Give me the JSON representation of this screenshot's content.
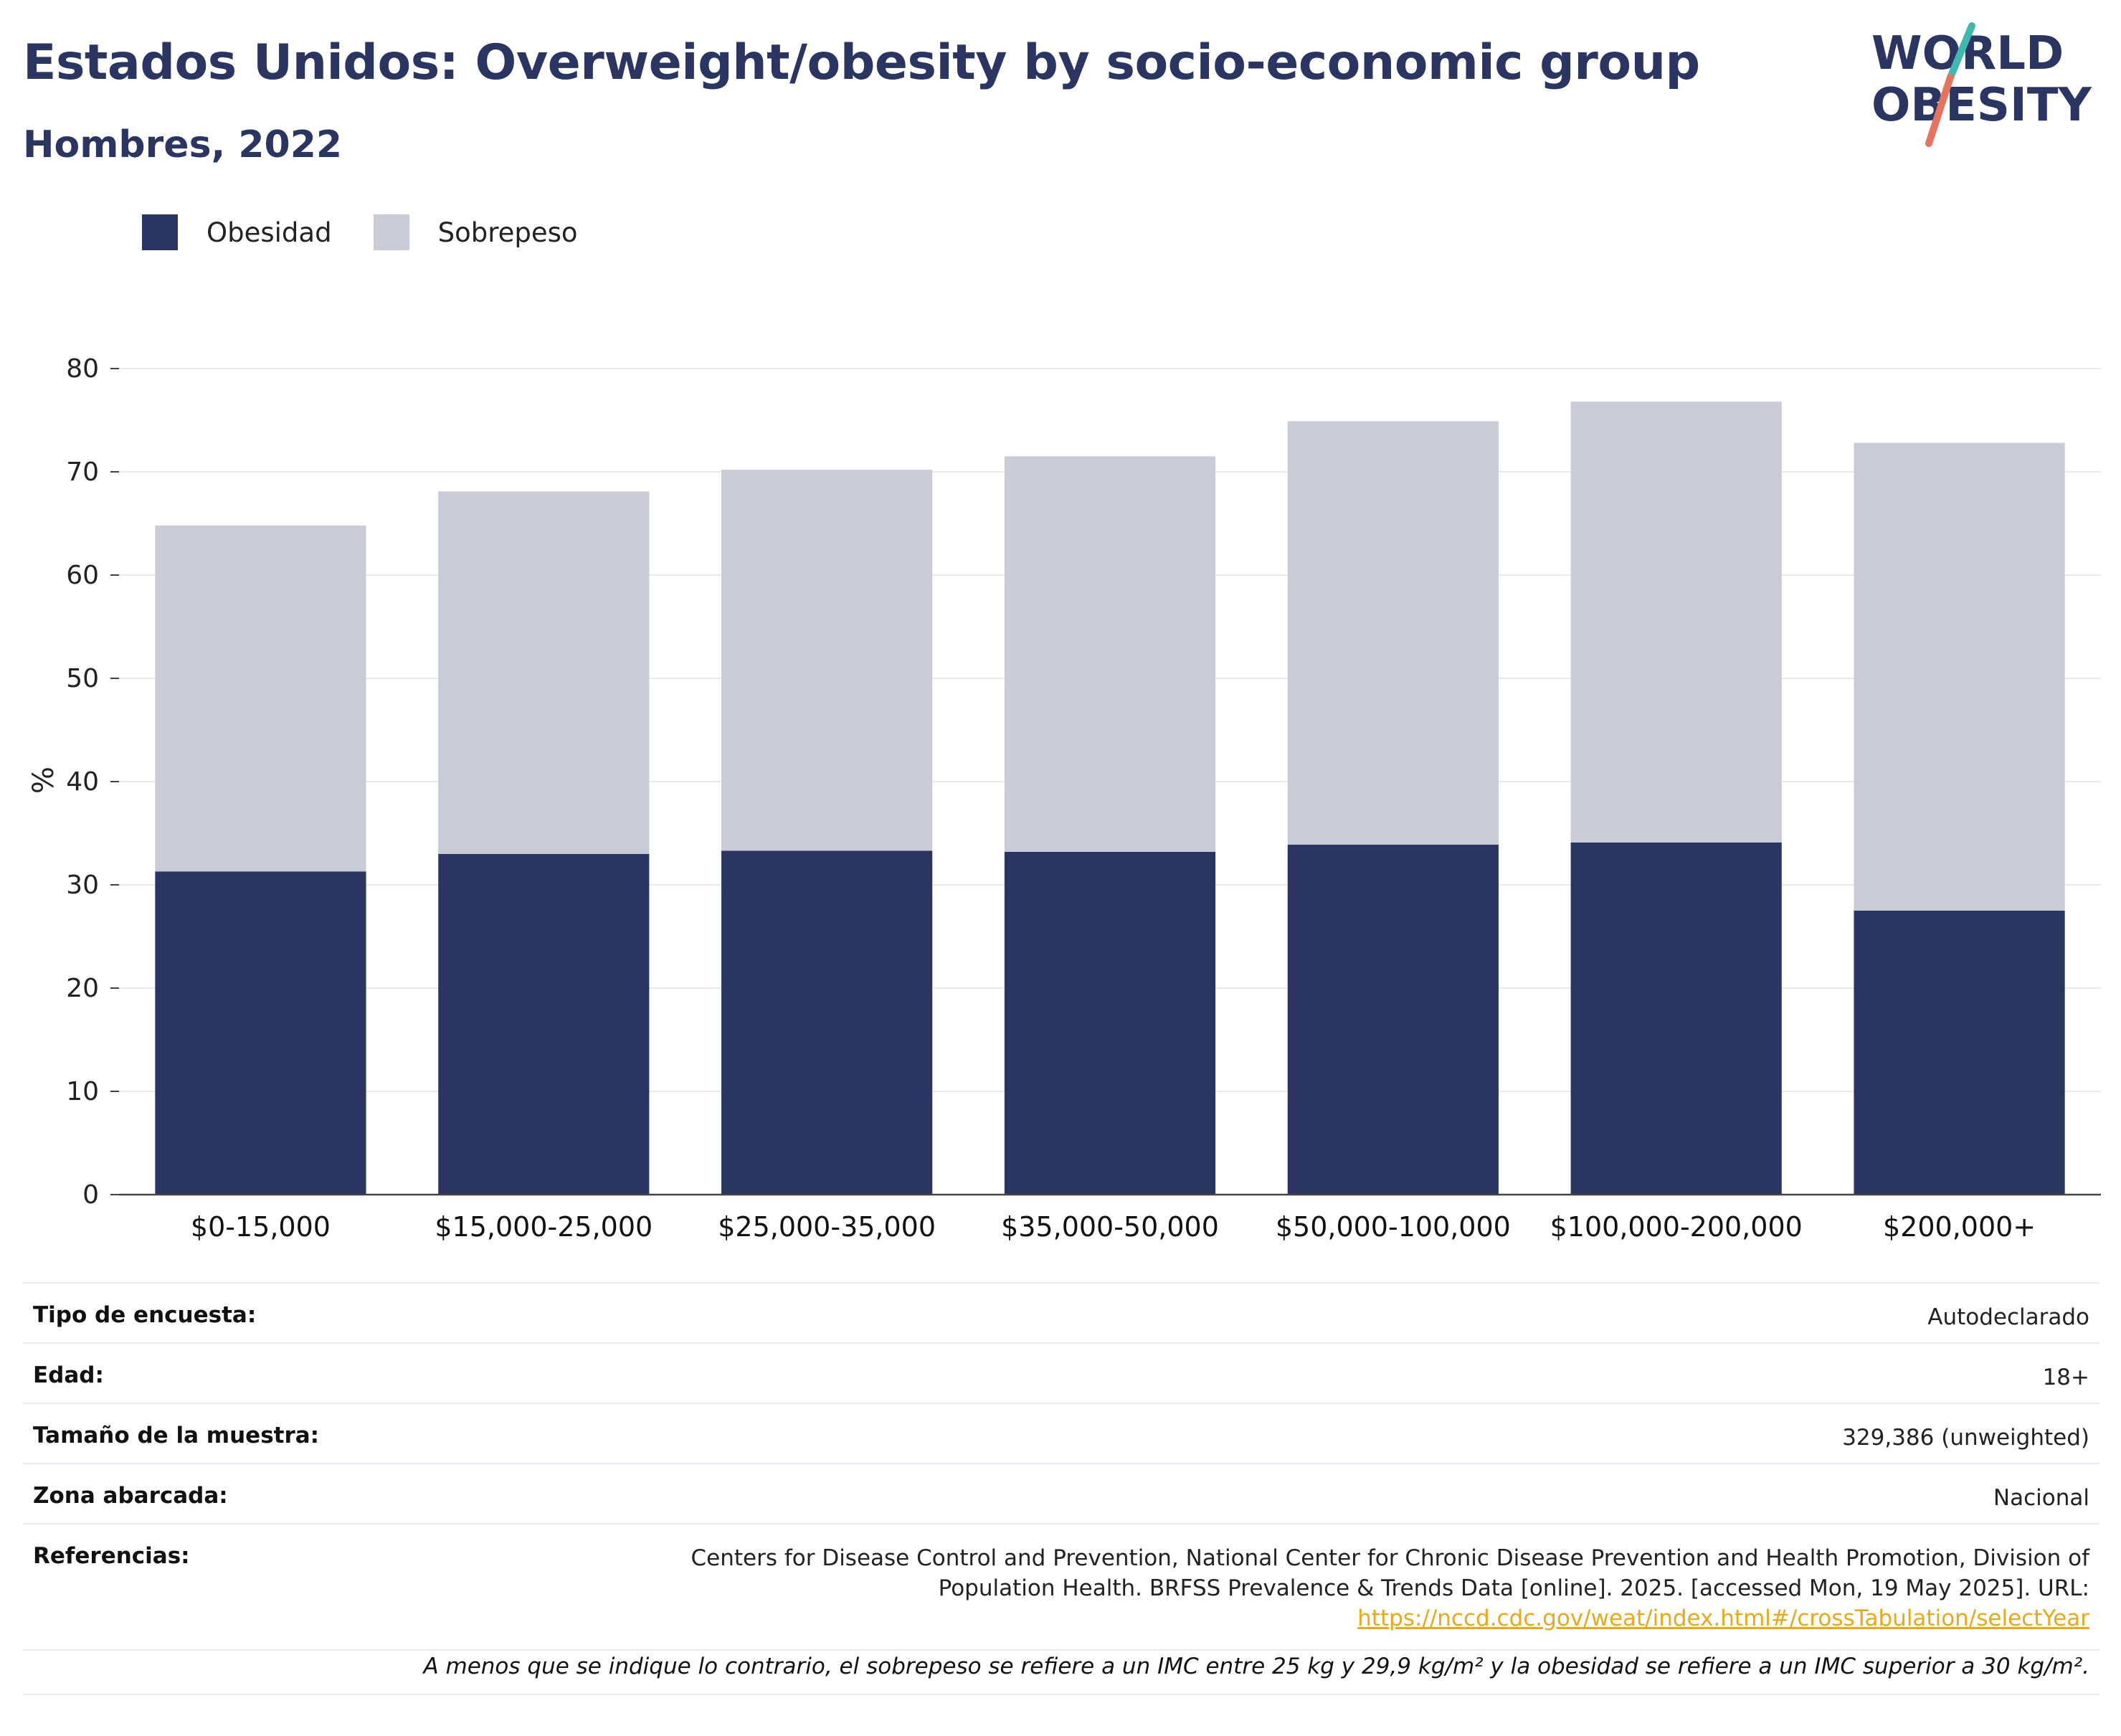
{
  "header": {
    "title": "Estados Unidos: Overweight/obesity by socio-economic group",
    "subtitle": "Hombres, 2022"
  },
  "logo": {
    "line1": "WORLD",
    "line2": "OBESITY",
    "colors": {
      "text": "#2a3562",
      "slash_top": "#3fb8b0",
      "slash_bottom": "#e5735f"
    }
  },
  "legend": {
    "items": [
      {
        "label": "Obesidad",
        "color": "#2a3562"
      },
      {
        "label": "Sobrepeso",
        "color": "#c9cbd6"
      }
    ]
  },
  "chart_data": {
    "type": "bar",
    "stacked": true,
    "categories": [
      "$0-15,000",
      "$15,000-25,000",
      "$25,000-35,000",
      "$35,000-50,000",
      "$50,000-100,000",
      "$100,000-200,000",
      "$200,000+"
    ],
    "series": [
      {
        "name": "Obesidad",
        "color": "#2a3562",
        "values": [
          31.3,
          33.0,
          33.3,
          33.2,
          33.9,
          34.1,
          27.5
        ]
      },
      {
        "name": "Sobrepeso",
        "color": "#c9cbd6",
        "values": [
          33.5,
          35.1,
          36.9,
          38.3,
          41.0,
          42.7,
          45.3
        ]
      }
    ],
    "ylabel": "%",
    "xlabel": "",
    "ylim": [
      0,
      80
    ],
    "yticks": [
      0,
      10,
      20,
      30,
      40,
      50,
      60,
      70,
      80
    ],
    "grid": true,
    "legend_position": "top-left"
  },
  "meta": {
    "rows": [
      {
        "label": "Tipo de encuesta:",
        "value": "Autodeclarado"
      },
      {
        "label": "Edad:",
        "value": "18+"
      },
      {
        "label": "Tamaño de la muestra:",
        "value": "329,386 (unweighted)"
      },
      {
        "label": "Zona abarcada:",
        "value": "Nacional"
      }
    ],
    "references": {
      "label": "Referencias:",
      "line1": "Centers for Disease Control and Prevention, National Center for Chronic Disease Prevention and Health Promotion, Division of",
      "line2": "Population Health. BRFSS Prevalence & Trends Data [online]. 2025. [accessed Mon, 19 May 2025]. URL:",
      "url": "https://nccd.cdc.gov/weat/index.html#/crossTabulation/selectYear",
      "url_color": "#e8a91a"
    },
    "footnote": "A menos que se indique lo contrario, el sobrepeso se refiere a un IMC entre 25 kg y 29,9 kg/m² y la obesidad se refiere a un IMC superior a 30 kg/m²."
  }
}
